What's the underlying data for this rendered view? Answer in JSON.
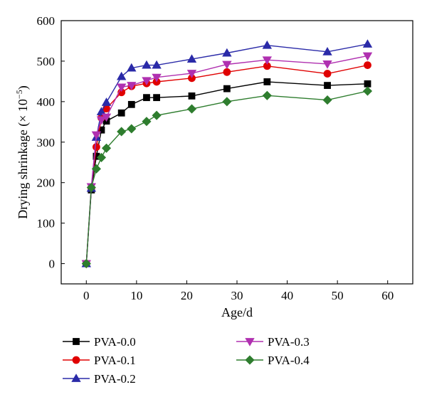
{
  "chart_data": {
    "type": "line",
    "title": "",
    "xlabel": "Age/d",
    "ylabel": "Drying shrinkage (× 10",
    "ylabel_exponent": "−5",
    "ylabel_close": ")",
    "xlim": [
      -5,
      65
    ],
    "ylim": [
      -50,
      600
    ],
    "xticks": [
      0,
      10,
      20,
      30,
      40,
      50,
      60
    ],
    "yticks": [
      0,
      100,
      200,
      300,
      400,
      500,
      600
    ],
    "xtick_labels": [
      "0",
      "10",
      "20",
      "30",
      "40",
      "50",
      "60"
    ],
    "ytick_labels": [
      "0",
      "100",
      "200",
      "300",
      "400",
      "500",
      "600"
    ],
    "grid": false,
    "legend_position": "bottom",
    "x": [
      0,
      1,
      2,
      3,
      4,
      7,
      9,
      12,
      14,
      21,
      28,
      36,
      48,
      56
    ],
    "series": [
      {
        "name": "PVA-0.0",
        "color": "#000000",
        "marker": "square",
        "values": [
          0,
          182,
          265,
          330,
          352,
          372,
          393,
          410,
          410,
          414,
          432,
          449,
          440,
          444
        ]
      },
      {
        "name": "PVA-0.1",
        "color": "#e00000",
        "marker": "circle",
        "values": [
          0,
          187,
          288,
          360,
          383,
          423,
          438,
          445,
          449,
          458,
          473,
          488,
          469,
          490
        ]
      },
      {
        "name": "PVA-0.2",
        "color": "#2a2aa8",
        "marker": "triangle-up",
        "values": [
          0,
          186,
          312,
          375,
          398,
          462,
          483,
          490,
          490,
          505,
          520,
          539,
          523,
          542
        ]
      },
      {
        "name": "PVA-0.3",
        "color": "#b030b0",
        "marker": "triangle-down",
        "values": [
          0,
          190,
          318,
          355,
          362,
          436,
          440,
          452,
          460,
          470,
          492,
          503,
          493,
          513
        ]
      },
      {
        "name": "PVA-0.4",
        "color": "#2e7d2e",
        "marker": "diamond",
        "values": [
          0,
          188,
          234,
          262,
          285,
          326,
          333,
          351,
          366,
          382,
          400,
          415,
          404,
          426
        ]
      }
    ]
  }
}
